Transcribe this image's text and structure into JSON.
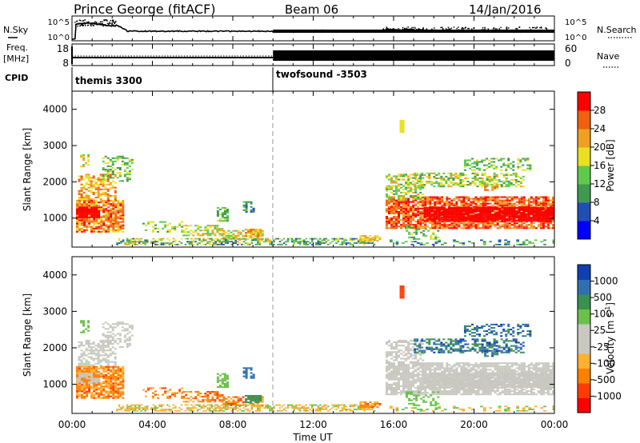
{
  "header": {
    "station": "Prince George (fitACF)",
    "beam": "Beam 06",
    "date": "14/Jan/2016"
  },
  "status_panels": {
    "nsky_label": "N.Sky",
    "nsearch_label": "N.Search",
    "noise_ticks_left": [
      "10^5",
      "10^0"
    ],
    "noise_ticks_right": [
      "10^5",
      "10^0"
    ],
    "freq_label": "Freq.",
    "freq_unit": "[MHz]",
    "freq_ticks": [
      "18",
      "8"
    ],
    "nave_label": "Nave",
    "nave_ticks": [
      "60",
      "0"
    ],
    "cpid_label": "CPID",
    "cpid_modes": [
      {
        "name": "themis 3300",
        "start_hour": 0
      },
      {
        "name": "twofsound -3503",
        "start_hour": 10
      }
    ]
  },
  "colors": {
    "power_scale": [
      "#0000ff",
      "#1f4fb4",
      "#3f9a4f",
      "#5fc94a",
      "#e8e020",
      "#f0a020",
      "#f06010",
      "#ff0000"
    ],
    "velocity_scale": [
      "#ff0000",
      "#ff3c00",
      "#ff7f00",
      "#ffb030",
      "#c8c8c0",
      "#c8c8c0",
      "#6ac04a",
      "#3a9050",
      "#3070b0",
      "#1040b0"
    ]
  },
  "chart_data": [
    {
      "type": "heatmap",
      "name": "power",
      "ylabel": "Slant Range [km]",
      "yticks": [
        1000,
        2000,
        3000,
        4000
      ],
      "ylim": [
        200,
        4500
      ],
      "xlim": [
        0,
        24
      ],
      "colorbar_label": "Power [dB]",
      "colorbar_ticks": [
        4,
        8,
        12,
        16,
        20,
        24,
        28
      ],
      "colorbar_range": [
        0,
        32
      ]
    },
    {
      "type": "heatmap",
      "name": "velocity",
      "ylabel": "Slant Range [km]",
      "yticks": [
        1000,
        2000,
        3000,
        4000
      ],
      "ylim": [
        200,
        4500
      ],
      "xlim": [
        0,
        24
      ],
      "colorbar_label": "Velocity [m s^-1]",
      "colorbar_ticks": [
        "1000",
        "500",
        "100",
        "25",
        "-25",
        "-100",
        "-500",
        "-1000"
      ]
    }
  ],
  "x_axis": {
    "ticks": [
      "00:00",
      "04:00",
      "08:00",
      "12:00",
      "16:00",
      "20:00",
      "00:00"
    ],
    "label": "Time UT"
  }
}
